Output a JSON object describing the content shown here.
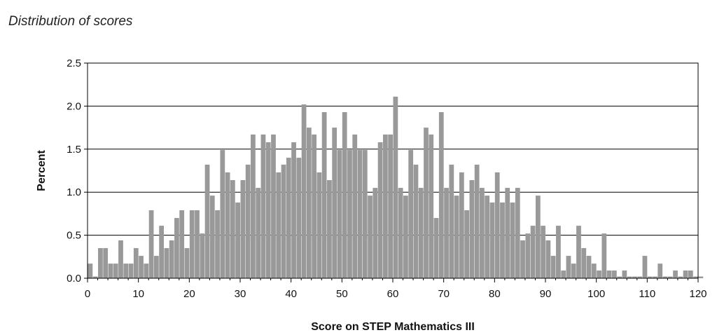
{
  "caption": "Distribution of scores",
  "chart_data": {
    "type": "bar",
    "title": "Distribution of scores",
    "xlabel": "Score on STEP Mathematics III",
    "ylabel": "Percent",
    "xlim": [
      0,
      120
    ],
    "ylim": [
      0,
      2.5
    ],
    "xticks": [
      "0",
      "10",
      "20",
      "30",
      "40",
      "50",
      "60",
      "70",
      "80",
      "90",
      "100",
      "110",
      "120"
    ],
    "yticks": [
      "0.0",
      "0.5",
      "1.0",
      "1.5",
      "2.0",
      "2.5"
    ],
    "grid": "horizontal",
    "bar_color": "#999999",
    "x": [
      0,
      1,
      2,
      3,
      4,
      5,
      6,
      7,
      8,
      9,
      10,
      11,
      12,
      13,
      14,
      15,
      16,
      17,
      18,
      19,
      20,
      21,
      22,
      23,
      24,
      25,
      26,
      27,
      28,
      29,
      30,
      31,
      32,
      33,
      34,
      35,
      36,
      37,
      38,
      39,
      40,
      41,
      42,
      43,
      44,
      45,
      46,
      47,
      48,
      49,
      50,
      51,
      52,
      53,
      54,
      55,
      56,
      57,
      58,
      59,
      60,
      61,
      62,
      63,
      64,
      65,
      66,
      67,
      68,
      69,
      70,
      71,
      72,
      73,
      74,
      75,
      76,
      77,
      78,
      79,
      80,
      81,
      82,
      83,
      84,
      85,
      86,
      87,
      88,
      89,
      90,
      91,
      92,
      93,
      94,
      95,
      96,
      97,
      98,
      99,
      100,
      101,
      102,
      103,
      104,
      105,
      106,
      107,
      108,
      109,
      110,
      111,
      112,
      113,
      114,
      115,
      116,
      117,
      118,
      119,
      120
    ],
    "values": [
      0.17,
      0.02,
      0.35,
      0.35,
      0.17,
      0.17,
      0.44,
      0.17,
      0.17,
      0.35,
      0.26,
      0.17,
      0.79,
      0.26,
      0.61,
      0.35,
      0.44,
      0.7,
      0.79,
      0.35,
      0.79,
      0.79,
      0.52,
      1.32,
      0.96,
      0.79,
      1.49,
      1.23,
      1.14,
      0.88,
      1.14,
      1.32,
      1.67,
      1.05,
      1.67,
      1.58,
      1.67,
      1.23,
      1.32,
      1.4,
      1.58,
      1.4,
      2.02,
      1.75,
      1.67,
      1.23,
      1.93,
      1.14,
      1.75,
      1.49,
      1.93,
      1.49,
      1.67,
      1.49,
      1.49,
      0.96,
      1.05,
      1.58,
      1.67,
      1.67,
      2.11,
      1.05,
      0.96,
      1.49,
      1.32,
      1.05,
      1.75,
      1.67,
      0.7,
      1.93,
      1.05,
      1.32,
      0.96,
      1.23,
      0.79,
      1.14,
      1.32,
      1.05,
      0.96,
      0.88,
      1.23,
      0.88,
      1.05,
      0.88,
      1.05,
      0.44,
      0.52,
      0.61,
      0.96,
      0.61,
      0.44,
      0.26,
      0.61,
      0.09,
      0.26,
      0.17,
      0.61,
      0.35,
      0.26,
      0.17,
      0.09,
      0.52,
      0.09,
      0.09,
      0.02,
      0.09,
      0.02,
      0.02,
      0.02,
      0.26,
      0.02,
      0.02,
      0.17,
      0.02,
      0.02,
      0.09,
      0.02,
      0.09,
      0.09,
      0.02,
      0.02
    ]
  }
}
